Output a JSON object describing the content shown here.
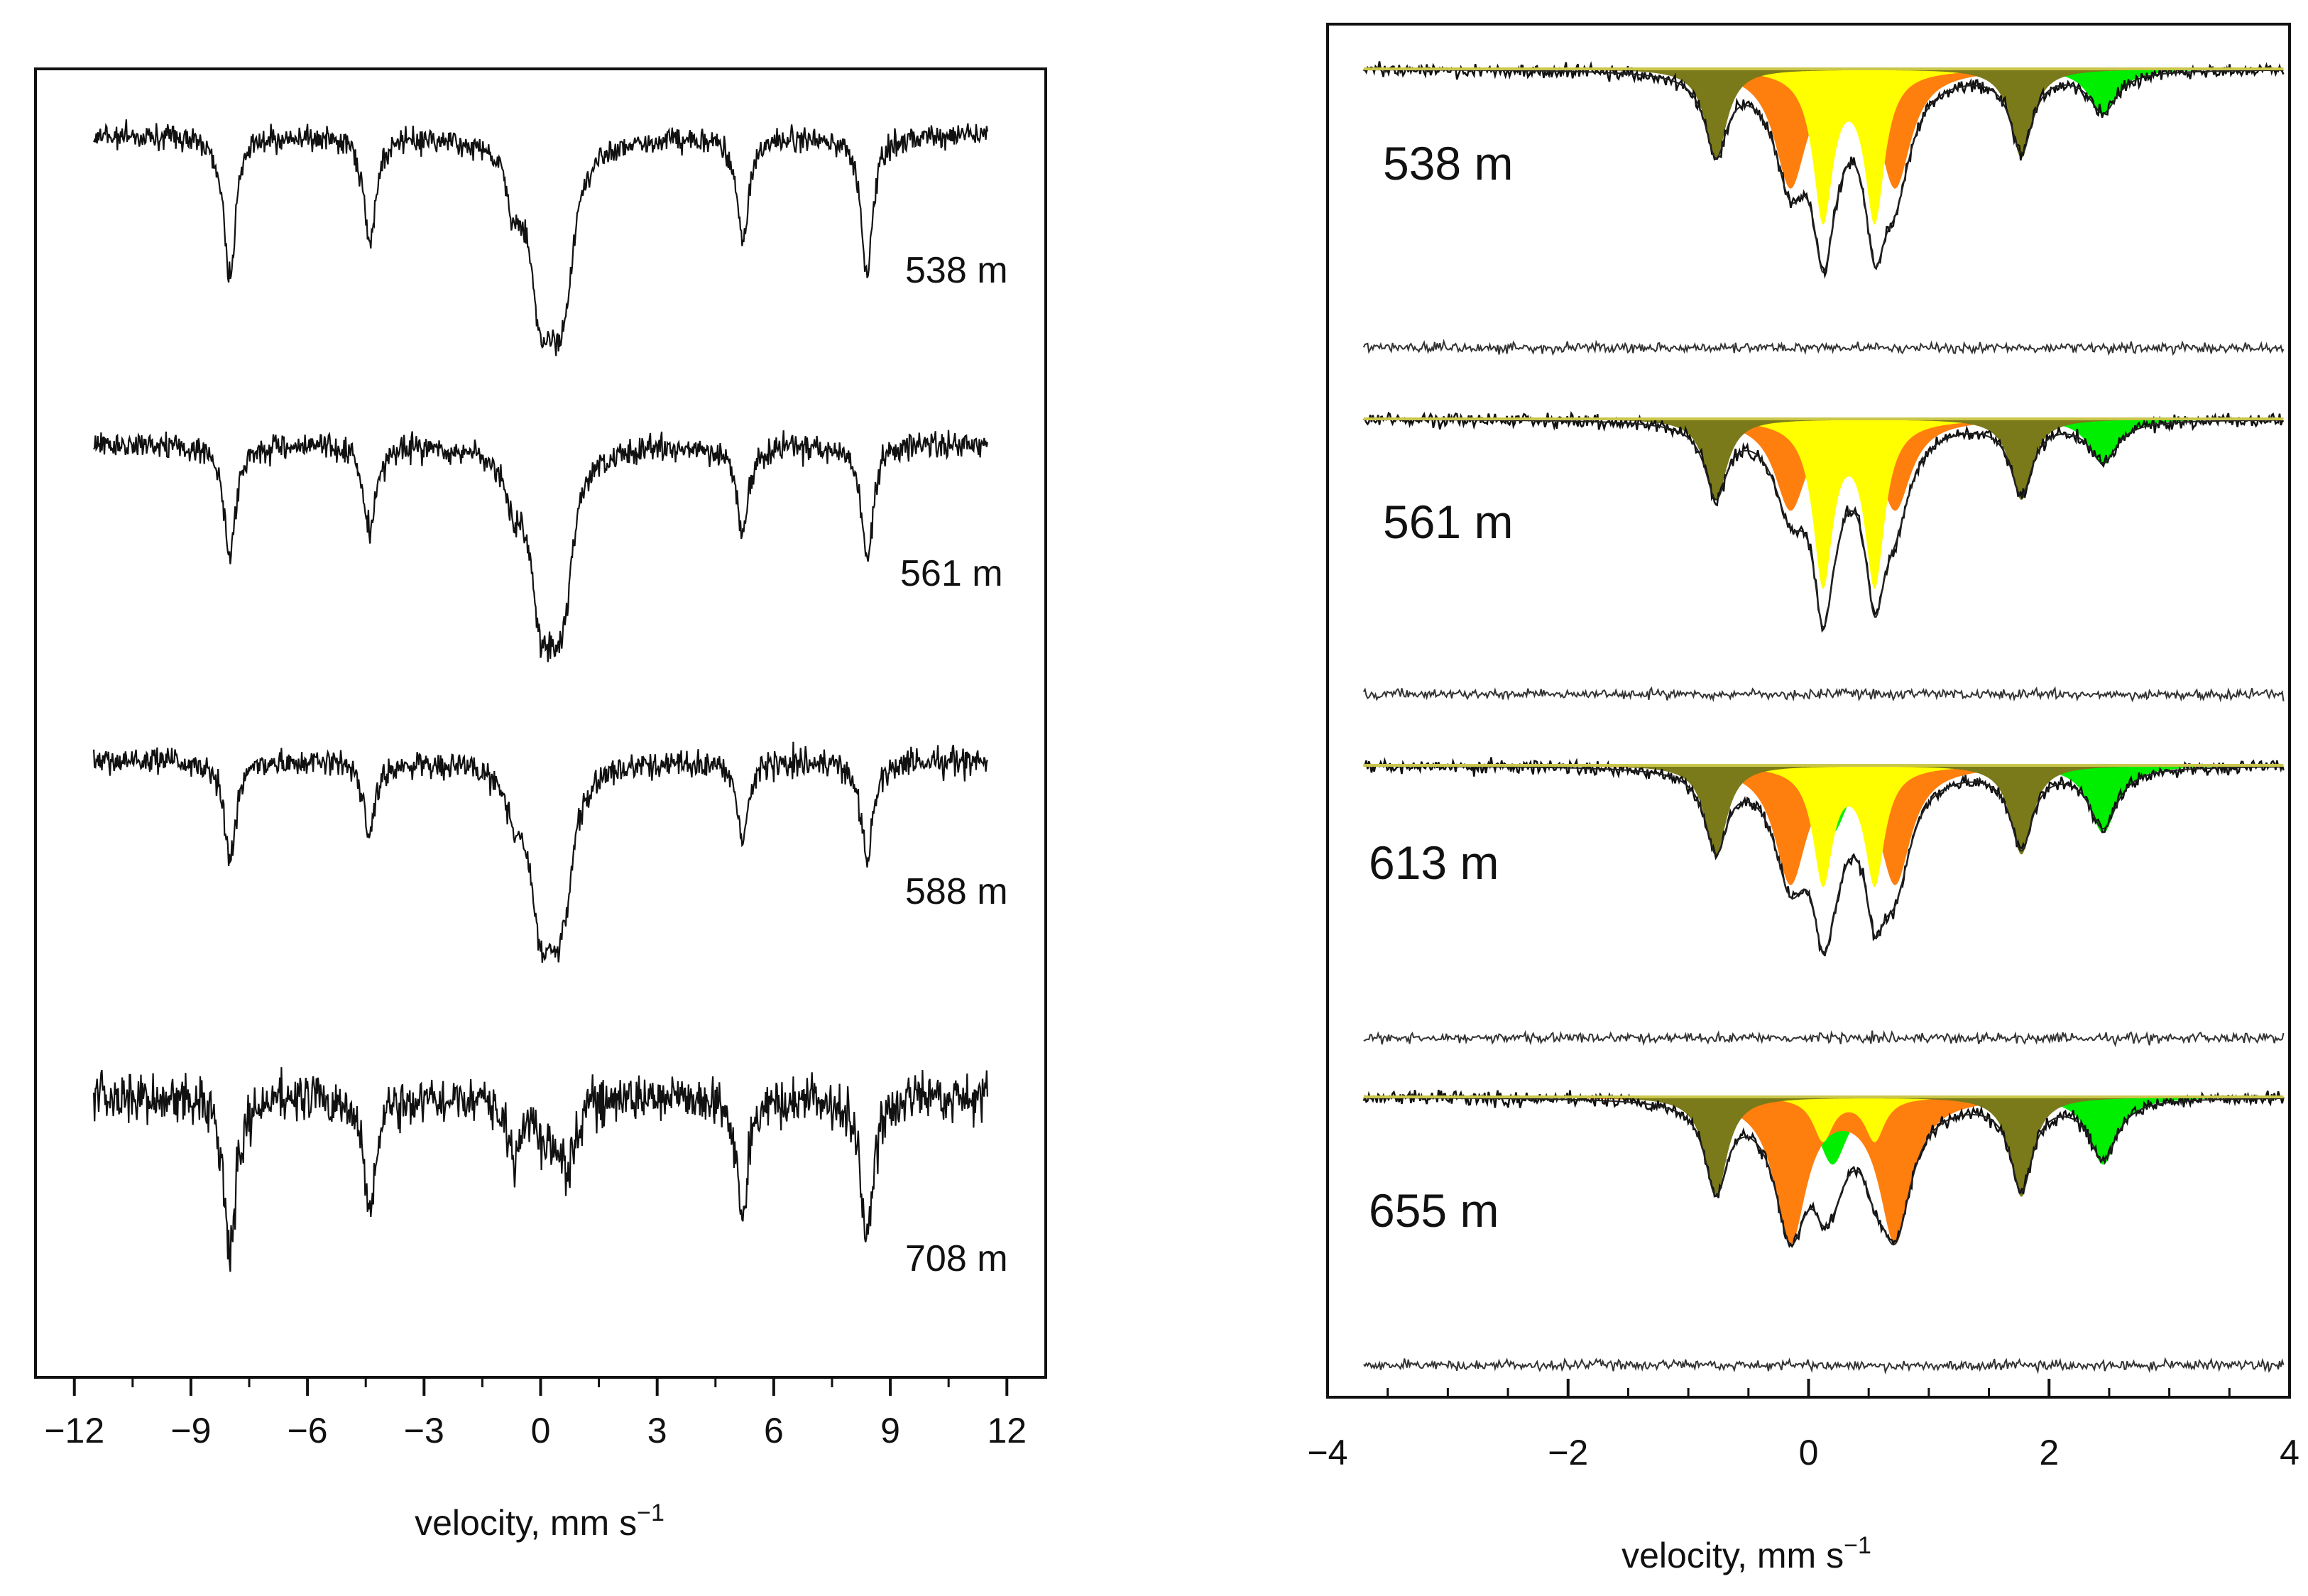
{
  "chart_data": [
    {
      "type": "line",
      "panel": "left",
      "xlabel": "velocity, mm s",
      "xlabel_sup": "−1",
      "xlim": [
        -13,
        13
      ],
      "xticks": [
        -12,
        -9,
        -6,
        -3,
        0,
        3,
        6,
        9,
        12
      ],
      "xtick_labels": [
        "−12",
        "−9",
        "−6",
        "−3",
        "0",
        "3",
        "6",
        "9",
        "12"
      ],
      "series": [
        {
          "name": "538 m",
          "noise": 0.045,
          "sextet_centers": [
            -8.0,
            -4.4,
            -0.7,
            0.7,
            5.2,
            8.4
          ],
          "sextet_depth": 0.5,
          "doublet": [
            0.0,
            0.45
          ],
          "doublet_depth": 0.85
        },
        {
          "name": "561 m",
          "noise": 0.05,
          "sextet_centers": [
            -8.0,
            -4.4,
            -0.7,
            0.7,
            5.2,
            8.4
          ],
          "sextet_depth": 0.4,
          "doublet": [
            0.0,
            0.45
          ],
          "doublet_depth": 0.85
        },
        {
          "name": "588 m",
          "noise": 0.05,
          "sextet_centers": [
            -8.0,
            -4.4,
            -0.7,
            0.7,
            5.2,
            8.4
          ],
          "sextet_depth": 0.35,
          "doublet": [
            0.0,
            0.45
          ],
          "doublet_depth": 0.8
        },
        {
          "name": "708 m",
          "noise": 0.09,
          "sextet_centers": [
            -8.0,
            -4.4,
            -0.7,
            0.7,
            5.2,
            8.4
          ],
          "sextet_depth": 0.55,
          "doublet": [
            0.0,
            0.45
          ],
          "doublet_depth": 0.15
        }
      ]
    },
    {
      "type": "area",
      "panel": "right",
      "xlabel": "velocity, mm s",
      "xlabel_sup": "−1",
      "xlim": [
        -4,
        4
      ],
      "xticks": [
        -4,
        -2,
        0,
        2,
        4
      ],
      "xtick_labels": [
        "−4",
        "−2",
        "0",
        "2",
        "4"
      ],
      "component_colors": {
        "olive": "#7a7a1a",
        "orange": "#ff7f0e",
        "yellow": "#ffff00",
        "green": "#00ee00",
        "baseline": "#c9c64a"
      },
      "series": [
        {
          "name": "538 m",
          "olive": 0.33,
          "orange": 0.43,
          "yellow": 0.55,
          "green": 0.17
        },
        {
          "name": "561 m",
          "olive": 0.3,
          "orange": 0.33,
          "yellow": 0.6,
          "green": 0.17
        },
        {
          "name": "613 m",
          "olive": 0.33,
          "orange": 0.43,
          "yellow": 0.43,
          "green": 0.25
        },
        {
          "name": "655 m",
          "olive": 0.37,
          "orange": 0.53,
          "yellow": 0.16,
          "green": 0.25
        }
      ]
    }
  ]
}
